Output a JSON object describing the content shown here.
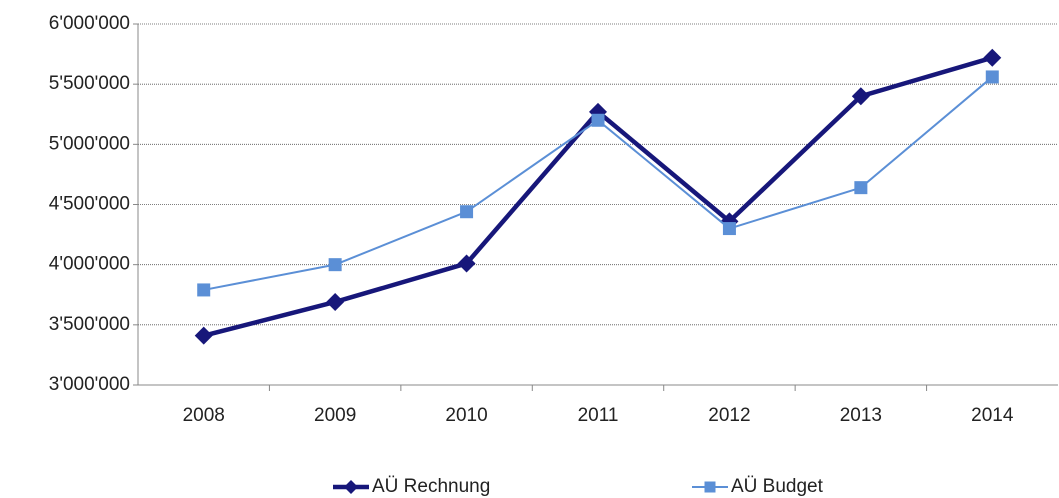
{
  "chart_data": {
    "type": "line",
    "categories": [
      "2008",
      "2009",
      "2010",
      "2011",
      "2012",
      "2013",
      "2014"
    ],
    "series": [
      {
        "name": "AÜ Rechnung",
        "color": "#17177a",
        "marker": "diamond",
        "values": [
          3410000,
          3690000,
          4010000,
          5270000,
          4360000,
          5400000,
          5720000
        ]
      },
      {
        "name": "AÜ Budget",
        "color": "#5b8fd6",
        "marker": "square",
        "values": [
          3790000,
          4000000,
          4440000,
          5200000,
          4300000,
          4640000,
          5560000
        ]
      }
    ],
    "ylim": [
      3000000,
      6000000
    ],
    "yticks": [
      {
        "value": 3000000,
        "label": "3'000'000"
      },
      {
        "value": 3500000,
        "label": "3'500'000"
      },
      {
        "value": 4000000,
        "label": "4'000'000"
      },
      {
        "value": 4500000,
        "label": "4'500'000"
      },
      {
        "value": 5000000,
        "label": "5'000'000"
      },
      {
        "value": 5500000,
        "label": "5'500'000"
      },
      {
        "value": 6000000,
        "label": "6'000'000"
      }
    ],
    "grid": true,
    "legend": "bottom"
  }
}
